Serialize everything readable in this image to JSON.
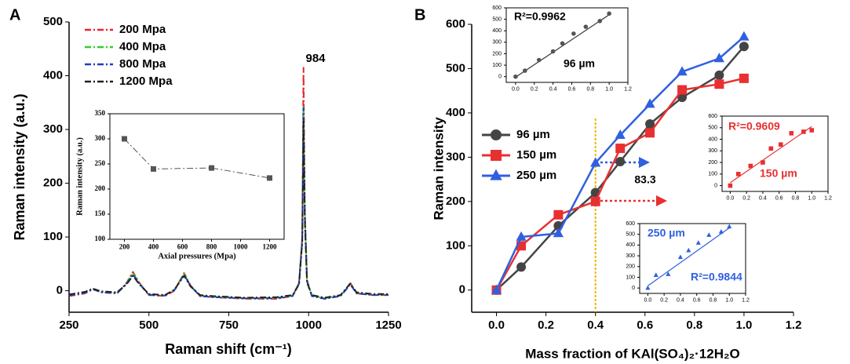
{
  "panel_labels": [
    "A",
    "B"
  ],
  "chart_data": [
    {
      "type": "line",
      "xlabel": "Raman shift (cm⁻¹)",
      "ylabel": "Raman intensity (a.u.)",
      "x": [
        250,
        300,
        325,
        350,
        400,
        430,
        450,
        470,
        500,
        550,
        580,
        610,
        630,
        660,
        700,
        800,
        900,
        950,
        970,
        980,
        984,
        988,
        995,
        1010,
        1050,
        1100,
        1120,
        1130,
        1150,
        1200,
        1250
      ],
      "series": [
        {
          "name": "200  Mpa",
          "color": "#e8262a",
          "line_style": "dashdot",
          "values": [
            -10,
            -5,
            3,
            -3,
            -5,
            15,
            35,
            15,
            -8,
            -10,
            0,
            33,
            10,
            -10,
            -12,
            -15,
            -15,
            -10,
            15,
            100,
            415,
            150,
            20,
            -10,
            -15,
            -10,
            5,
            15,
            -5,
            -8,
            -8
          ]
        },
        {
          "name": "400  Mpa",
          "color": "#33cc33",
          "line_style": "dashdot",
          "values": [
            -8,
            -3,
            2,
            -2,
            -4,
            14,
            33,
            14,
            -7,
            -9,
            2,
            32,
            9,
            -9,
            -11,
            -14,
            -13,
            -9,
            14,
            95,
            345,
            140,
            18,
            -9,
            -14,
            -9,
            6,
            14,
            -4,
            -7,
            -7
          ]
        },
        {
          "name": "800  Mpa",
          "color": "#1f3fbf",
          "line_style": "dashdot",
          "values": [
            -9,
            -4,
            3,
            -3,
            -5,
            13,
            30,
            13,
            -8,
            -9,
            1,
            30,
            9,
            -10,
            -12,
            -14,
            -14,
            -10,
            13,
            92,
            340,
            135,
            17,
            -10,
            -15,
            -10,
            4,
            12,
            -5,
            -8,
            -8
          ]
        },
        {
          "name": "1200 Mpa",
          "color": "#222222",
          "line_style": "dashdot",
          "values": [
            -7,
            -2,
            4,
            -1,
            -3,
            12,
            28,
            12,
            -6,
            -8,
            2,
            28,
            8,
            -8,
            -10,
            -13,
            -12,
            -8,
            12,
            90,
            320,
            130,
            15,
            -8,
            -13,
            -8,
            6,
            13,
            -3,
            -6,
            -6
          ]
        }
      ],
      "xlim": [
        250,
        1250
      ],
      "xticks": [
        250,
        500,
        750,
        1000,
        1250
      ],
      "ylim": [
        -40,
        500
      ],
      "yticks": [
        0,
        100,
        200,
        300,
        400,
        500
      ],
      "legend": "upper left",
      "annotations": [
        {
          "text": "984",
          "color": "#000000"
        }
      ]
    },
    {
      "type": "line",
      "xlabel": "Axial pressures (Mpa)",
      "ylabel": "Raman intensity (a.u.)",
      "x": [
        200,
        400,
        800,
        1200
      ],
      "series": [
        {
          "color": "#555555",
          "line_style": "dashdot",
          "marker": "square",
          "values": [
            300,
            240,
            242,
            222
          ]
        }
      ],
      "xlim": [
        100,
        1300
      ],
      "xticks": [
        200,
        400,
        600,
        800,
        1000,
        1200
      ],
      "ylim": [
        100,
        350
      ],
      "yticks": [
        100,
        150,
        200,
        250,
        300,
        350
      ]
    },
    {
      "type": "line",
      "xlabel": "Mass fraction of KAl(SO₄)₂·12H₂O",
      "ylabel": "Raman intensity",
      "x": [
        0,
        0.1,
        0.25,
        0.4,
        0.5,
        0.62,
        0.75,
        0.9,
        1.0
      ],
      "series": [
        {
          "name": "96 µm",
          "color": "#444444",
          "line_style": "solid",
          "marker": "circle",
          "values": [
            0,
            52,
            145,
            220,
            290,
            375,
            435,
            485,
            550
          ]
        },
        {
          "name": "150 µm",
          "color": "#e83030",
          "line_style": "solid",
          "marker": "square",
          "values": [
            0,
            100,
            170,
            200,
            320,
            355,
            452,
            465,
            478
          ]
        },
        {
          "name": "250 µm",
          "color": "#3060e0",
          "line_style": "solid",
          "marker": "triangle",
          "values": [
            0,
            120,
            128,
            287,
            350,
            420,
            493,
            523,
            572
          ]
        }
      ],
      "xlim": [
        -0.1,
        1.2
      ],
      "xticks": [
        {
          "value": 0,
          "label": "0.0"
        },
        0.2,
        0.4,
        0.6,
        0.8,
        {
          "value": 1,
          "label": "1.0"
        },
        0.2,
        1.2
      ],
      "ylim": [
        -50,
        600
      ],
      "yticks": [
        0,
        100,
        200,
        300,
        400,
        500,
        600
      ],
      "vline": 0.4,
      "vline_color": "#f0b400",
      "legend": "center left",
      "annotations": [
        {
          "text": "83.3",
          "color": "#000000"
        }
      ]
    },
    {
      "type": "scatter",
      "x": [
        0,
        0.1,
        0.25,
        0.4,
        0.5,
        0.62,
        0.75,
        0.9,
        1.0
      ],
      "series": [
        {
          "color": "#555555",
          "marker": "circle",
          "values": [
            0,
            52,
            145,
            220,
            290,
            375,
            435,
            485,
            550
          ]
        }
      ],
      "fit": {
        "x": [
          0,
          1
        ],
        "y": [
          -5,
          540
        ],
        "color": "#333333"
      },
      "xlim": [
        -0.1,
        1.2
      ],
      "xticks": [
        {
          "value": 0,
          "label": "0.0"
        },
        0.2,
        0.4,
        0.6,
        0.8,
        {
          "value": 1,
          "label": "1.0"
        },
        1.2
      ],
      "ylim": [
        -50,
        600
      ],
      "yticks": [
        0,
        100,
        200,
        300,
        400,
        500,
        600
      ],
      "annotations": [
        {
          "text": "R²=0.9962",
          "color": "#000000"
        },
        {
          "text": "96 µm",
          "color": "#000000"
        }
      ]
    },
    {
      "type": "scatter",
      "x": [
        0,
        0.1,
        0.25,
        0.4,
        0.5,
        0.62,
        0.75,
        0.9,
        1.0
      ],
      "series": [
        {
          "color": "#e83030",
          "marker": "square",
          "values": [
            0,
            100,
            170,
            200,
            320,
            355,
            452,
            465,
            478
          ]
        }
      ],
      "fit": {
        "x": [
          0,
          1
        ],
        "y": [
          25,
          510
        ],
        "color": "#e83030"
      },
      "xlim": [
        -0.1,
        1.2
      ],
      "xticks": [
        {
          "value": 0,
          "label": "0.0"
        },
        0.2,
        0.4,
        0.6,
        0.8,
        {
          "value": 1,
          "label": "1.0"
        },
        1.2
      ],
      "ylim": [
        -50,
        600
      ],
      "yticks": [
        0,
        100,
        200,
        300,
        400,
        500,
        600
      ],
      "annotations": [
        {
          "text": "R²=0.9609",
          "color": "#e83030"
        },
        {
          "text": "150 µm",
          "color": "#e83030"
        }
      ]
    },
    {
      "type": "scatter",
      "x": [
        0,
        0.1,
        0.25,
        0.4,
        0.5,
        0.62,
        0.75,
        0.9,
        1.0
      ],
      "series": [
        {
          "color": "#3060e0",
          "marker": "triangle",
          "values": [
            0,
            120,
            128,
            287,
            350,
            420,
            493,
            523,
            572
          ]
        }
      ],
      "fit": {
        "x": [
          0,
          1
        ],
        "y": [
          20,
          560
        ],
        "color": "#3060e0"
      },
      "xlim": [
        -0.1,
        1.2
      ],
      "xticks": [
        {
          "value": 0,
          "label": "0.0"
        },
        0.2,
        0.4,
        0.6,
        0.8,
        {
          "value": 1,
          "label": "1.0"
        },
        1.2
      ],
      "ylim": [
        -50,
        600
      ],
      "yticks": [
        0,
        100,
        200,
        300,
        400,
        500,
        600
      ],
      "annotations": [
        {
          "text": "250 µm",
          "color": "#3060e0"
        },
        {
          "text": "R²=0.9844",
          "color": "#3060e0"
        }
      ]
    }
  ]
}
